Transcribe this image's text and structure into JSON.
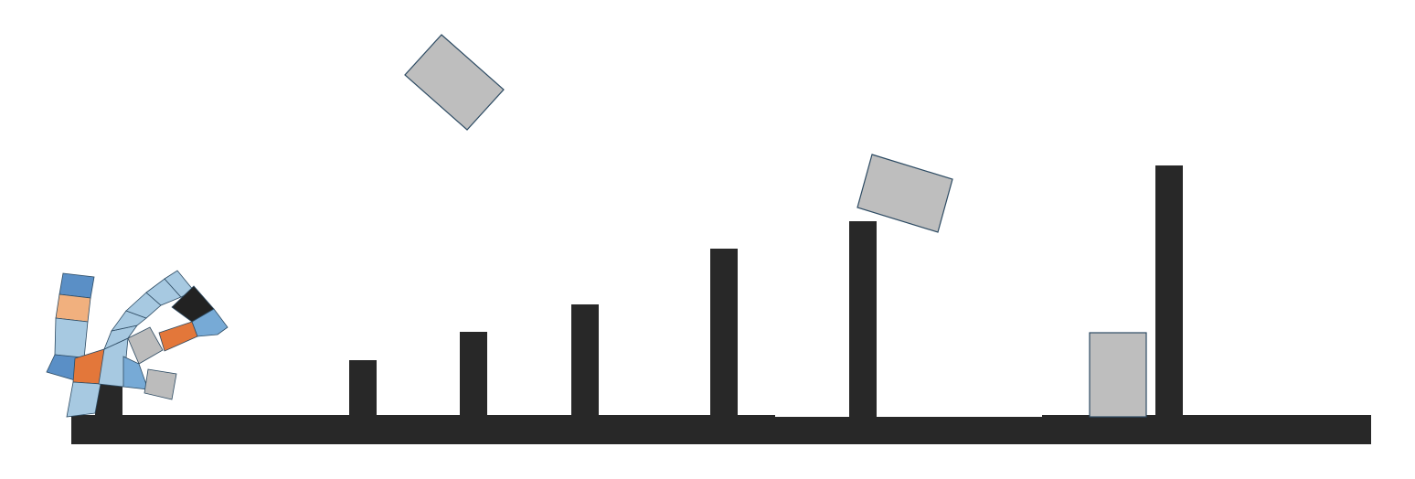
{
  "scene": {
    "type": "physics-sandbox",
    "colors": {
      "background": "#ffffff",
      "terrain": "#282828",
      "box_fill": "#bebebe",
      "box_outline": "#2d4b63",
      "creature_light_blue": "#a7c9e1",
      "creature_mid_blue": "#77aad6",
      "creature_dark_blue": "#5a8fc6",
      "creature_orange": "#e3773a",
      "creature_peach": "#f1b07e",
      "creature_grey": "#bcbcbc",
      "creature_black": "#222222"
    },
    "objects": {
      "terrain_segments": 4,
      "pillars": 8,
      "loose_boxes": 3,
      "creature_limbs": 3
    }
  }
}
